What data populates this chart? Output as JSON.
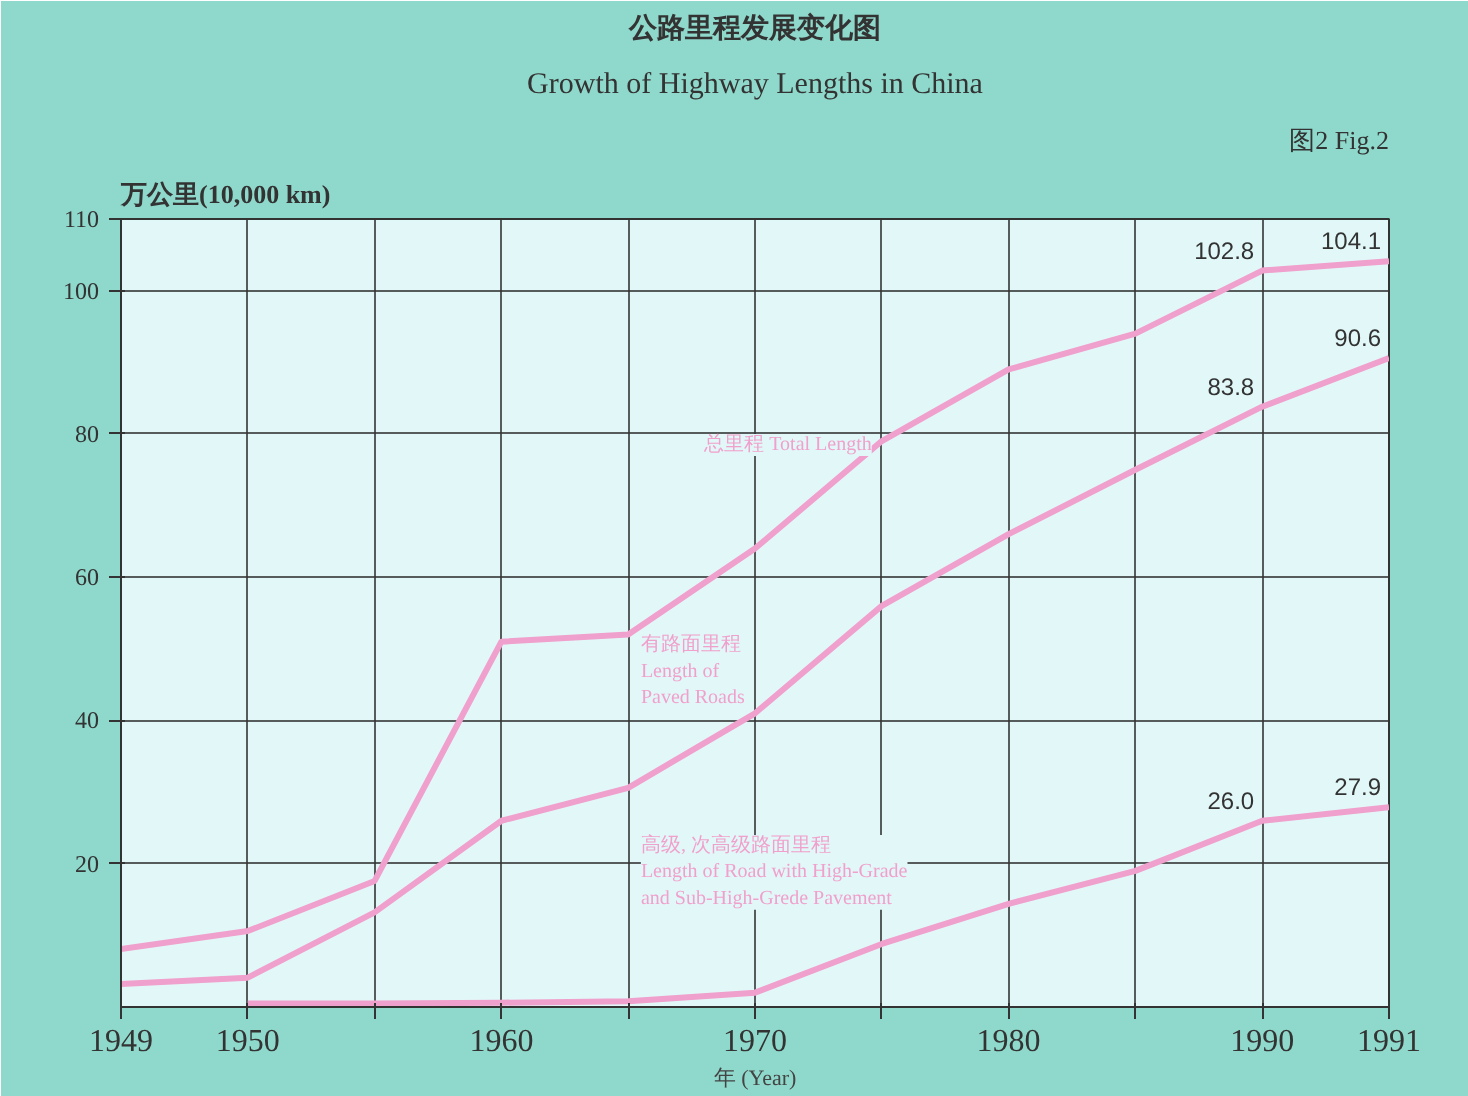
{
  "chart_data": {
    "type": "line",
    "title": "公路里程发展变化图",
    "subtitle": "Growth of Highway Lengths in China",
    "ylabel": "万公里(10,000 km)",
    "xlabel": "年 (Year)",
    "annotations": [
      "图2 Fig.2"
    ],
    "categories": [
      "1949",
      "1950",
      null,
      "1960",
      null,
      "1970",
      null,
      "1980",
      null,
      "1990",
      "1991"
    ],
    "series": [
      {
        "name": "总里程 Total Length",
        "color": "#f0a0cc",
        "values": [
          8.1,
          10.6,
          17.6,
          51,
          52,
          64,
          79,
          89,
          94,
          102.8,
          104.1
        ],
        "value_labels": [
          null,
          null,
          null,
          null,
          null,
          null,
          null,
          null,
          null,
          "102.8",
          "104.1"
        ]
      },
      {
        "name": "有路面里程\nLength of\nPaved Roads",
        "color": "#f0a0cc",
        "values": [
          3.2,
          4.1,
          13.2,
          26,
          30.6,
          41,
          56,
          66,
          75,
          83.8,
          90.6
        ],
        "value_labels": [
          null,
          null,
          null,
          null,
          null,
          null,
          null,
          null,
          null,
          "83.8",
          "90.6"
        ]
      },
      {
        "name": "高级, 次高级路面里程\nLength of Road with High-Grade\nand Sub-High-Grede Pavement",
        "color": "#f0a0cc",
        "values": [
          null,
          0.5,
          0.5,
          0.6,
          0.8,
          2,
          8.8,
          14.4,
          19,
          26.0,
          27.9
        ],
        "value_labels": [
          null,
          null,
          null,
          null,
          null,
          null,
          null,
          null,
          null,
          "26.0",
          "27.9"
        ]
      }
    ],
    "ylim": [
      0,
      110
    ],
    "yticks": [
      20,
      40,
      60,
      80,
      100,
      110
    ],
    "grid": true,
    "line_style": "solid",
    "marker": "none"
  }
}
